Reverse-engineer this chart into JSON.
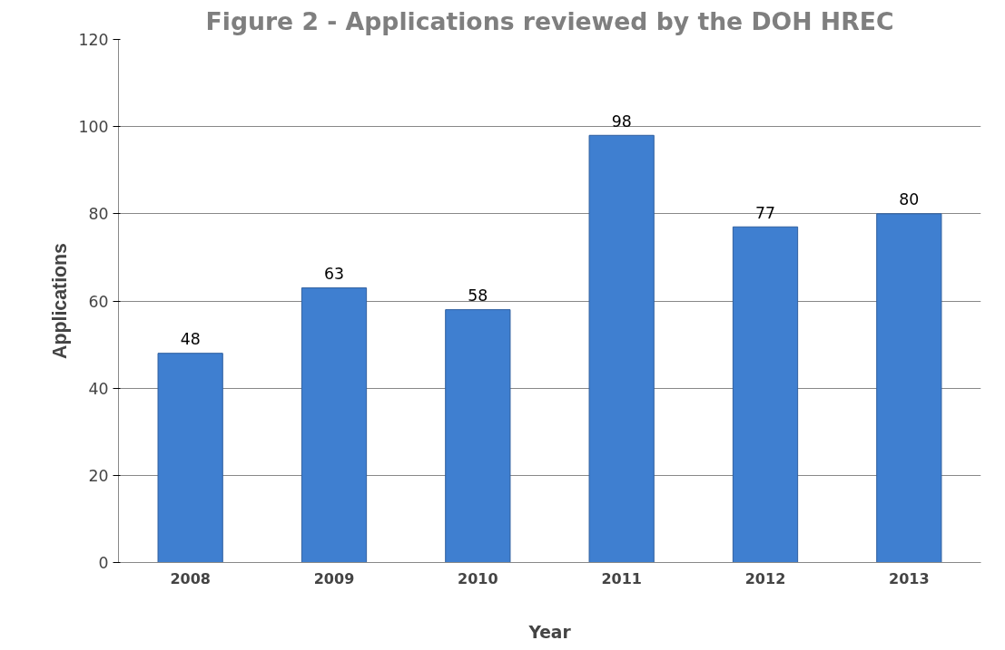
{
  "chart_data": {
    "type": "bar",
    "title": "Figure 2 - Applications reviewed by the DOH HREC",
    "xlabel": "Year",
    "ylabel": "Applications",
    "categories": [
      "2008",
      "2009",
      "2010",
      "2011",
      "2012",
      "2013"
    ],
    "values": [
      48,
      63,
      58,
      98,
      77,
      80
    ],
    "color": "#3f7fd0",
    "ylim": [
      0,
      120
    ],
    "yticks": [
      0,
      20,
      40,
      60,
      80,
      100,
      120
    ],
    "grid": "y",
    "data_labels": true
  }
}
